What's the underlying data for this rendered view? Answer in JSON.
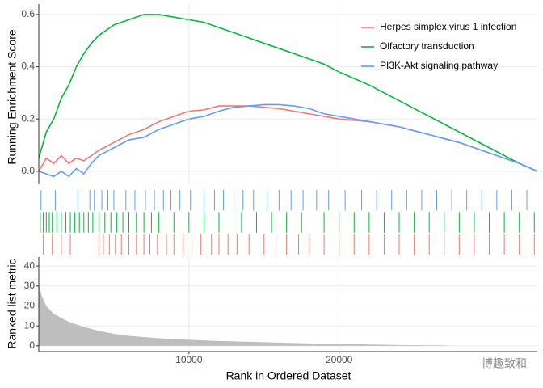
{
  "chart_data": [
    {
      "type": "line",
      "ylabel": "Running Enrichment Score",
      "xlim": [
        0,
        33200
      ],
      "ylim": [
        -0.05,
        0.64
      ],
      "yticks": [
        {
          "value": 0,
          "label": "0.0"
        },
        0.2,
        0.4,
        0.6
      ],
      "legend": "top-right",
      "x": [
        0,
        500,
        1000,
        1500,
        2000,
        2500,
        3000,
        3500,
        4000,
        5000,
        6000,
        7000,
        8000,
        9000,
        10000,
        11000,
        12000,
        13000,
        14000,
        15000,
        16000,
        17000,
        18000,
        19000,
        20000,
        22000,
        24000,
        26000,
        28000,
        30000,
        32000,
        33200
      ],
      "series": [
        {
          "name": "Herpes simplex virus 1 infection",
          "color": "#F8766D",
          "values": [
            0.0,
            0.05,
            0.03,
            0.06,
            0.03,
            0.05,
            0.04,
            0.06,
            0.08,
            0.11,
            0.14,
            0.16,
            0.19,
            0.21,
            0.23,
            0.235,
            0.25,
            0.25,
            0.25,
            0.245,
            0.24,
            0.23,
            0.22,
            0.21,
            0.2,
            0.19,
            0.17,
            0.14,
            0.11,
            0.07,
            0.03,
            0.0
          ]
        },
        {
          "name": "Olfactory transduction",
          "color": "#00BA38",
          "values": [
            0.05,
            0.15,
            0.2,
            0.28,
            0.33,
            0.4,
            0.45,
            0.49,
            0.52,
            0.56,
            0.58,
            0.6,
            0.6,
            0.59,
            0.58,
            0.57,
            0.55,
            0.53,
            0.51,
            0.49,
            0.47,
            0.45,
            0.43,
            0.41,
            0.38,
            0.33,
            0.27,
            0.21,
            0.15,
            0.09,
            0.03,
            0.0
          ]
        },
        {
          "name": "PI3K-Akt signaling pathway",
          "color": "#619CFF",
          "values": [
            0.0,
            -0.01,
            -0.02,
            0.0,
            -0.02,
            0.01,
            -0.01,
            0.03,
            0.06,
            0.09,
            0.12,
            0.13,
            0.16,
            0.18,
            0.2,
            0.21,
            0.23,
            0.245,
            0.25,
            0.255,
            0.255,
            0.25,
            0.24,
            0.22,
            0.21,
            0.19,
            0.17,
            0.14,
            0.11,
            0.07,
            0.03,
            0.0
          ]
        }
      ]
    },
    {
      "type": "barcode",
      "xlim": [
        0,
        33200
      ],
      "series": [
        {
          "color": "#619CFF",
          "values": [
            150,
            1100,
            2600,
            3400,
            3700,
            4200,
            4600,
            5000,
            5800,
            6400,
            7100,
            7700,
            8300,
            8800,
            9400,
            10100,
            11000,
            11700,
            12300,
            13000,
            13600,
            14300,
            15200,
            16000,
            16800,
            17600,
            18500,
            19300,
            20400,
            21500,
            22500,
            23500,
            24500,
            25500,
            26500,
            27500,
            28500,
            29500,
            30500,
            31500,
            32500
          ]
        },
        {
          "color": "#00BA38",
          "values": [
            100,
            300,
            500,
            700,
            900,
            1200,
            1500,
            1800,
            2100,
            2400,
            2700,
            3000,
            3300,
            3600,
            4000,
            4400,
            4800,
            5200,
            5600,
            6000,
            6500,
            7000,
            7500,
            8000,
            9000,
            10000,
            11000,
            12000,
            13500,
            14500,
            15500,
            16500,
            17500,
            19000,
            20000,
            21000,
            22000,
            23000,
            24000,
            25000,
            26000,
            27000,
            28000,
            29000,
            30000,
            31000,
            32000,
            33000
          ]
        },
        {
          "color": "#F8766D",
          "values": [
            300,
            900,
            1500,
            2100,
            4000,
            4300,
            4700,
            5100,
            5500,
            6000,
            6500,
            7000,
            7400,
            7900,
            8500,
            9000,
            9600,
            10200,
            10800,
            11500,
            12000,
            12600,
            13200,
            14000,
            15000,
            15800,
            16500,
            17300,
            18000,
            19000,
            20000,
            21000,
            22000,
            23000,
            24000,
            25000,
            26000,
            27000,
            28000,
            29000,
            30000,
            31000,
            32000,
            33000
          ]
        }
      ]
    },
    {
      "type": "area",
      "ylabel": "Ranked list metric",
      "xlabel": "Rank in Ordered Dataset",
      "xlim": [
        0,
        33200
      ],
      "xticks": [
        10000,
        20000
      ],
      "ylim": [
        -2.9,
        44.5
      ],
      "yticks": [
        0,
        10,
        20,
        30,
        40
      ],
      "color": "#BEBEBE",
      "x": [
        0,
        200,
        500,
        1000,
        2000,
        3000,
        4000,
        5000,
        6000,
        8000,
        10000,
        12000,
        15000,
        18000,
        21000,
        24000,
        27000,
        27500
      ],
      "values": [
        31,
        25,
        20,
        16,
        12,
        9.5,
        7.5,
        6,
        5,
        3.8,
        3,
        2.4,
        1.8,
        1.2,
        0.8,
        0.4,
        0.2,
        0
      ]
    }
  ],
  "watermark": "博趣致和"
}
